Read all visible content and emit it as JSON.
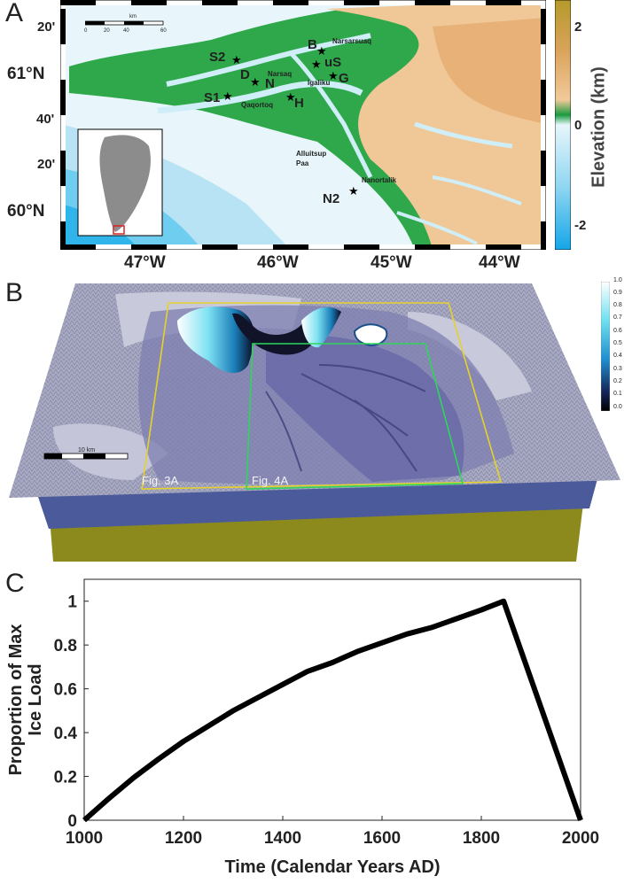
{
  "panel_a": {
    "letter": "A",
    "lat_labels": [
      "20'",
      "61°N",
      "40'",
      "20'",
      "60°N"
    ],
    "lon_labels": [
      "47°W",
      "46°W",
      "45°W",
      "44°W"
    ],
    "scalebar_unit": "km",
    "scalebar_ticks": [
      "0",
      "20",
      "40",
      "60"
    ],
    "sites": [
      {
        "code": "S2"
      },
      {
        "code": "B"
      },
      {
        "code": "uS"
      },
      {
        "code": "D"
      },
      {
        "code": "N"
      },
      {
        "code": "G"
      },
      {
        "code": "S1"
      },
      {
        "code": "H"
      },
      {
        "code": "N2"
      }
    ],
    "places": [
      "Narsarsuaq",
      "Narsaq",
      "Igaliku",
      "Qaqortoq",
      "Alluitsup Paa",
      "Nanortalik"
    ],
    "colorbar": {
      "label": "Elevation (km)",
      "ticks": [
        "2",
        "0",
        "-2"
      ]
    }
  },
  "panel_b": {
    "letter": "B",
    "scalebar_label": "10 km",
    "box_labels": [
      "Fig. 3A",
      "Fig. 4A"
    ],
    "colorbar_ticks": [
      "1.0",
      "0.9",
      "0.8",
      "0.7",
      "0.6",
      "0.5",
      "0.4",
      "0.3",
      "0.2",
      "0.1",
      "0.0"
    ]
  },
  "panel_c": {
    "letter": "C",
    "chart_data": {
      "type": "line",
      "xlabel": "Time (Calendar Years AD)",
      "ylabel": "Proportion of Max Ice Load",
      "xlim": [
        1000,
        2000
      ],
      "ylim": [
        0,
        1.1
      ],
      "xticks": [
        1000,
        1200,
        1400,
        1600,
        1800,
        2000
      ],
      "yticks": [
        0,
        0.2,
        0.4,
        0.6,
        0.8,
        1
      ],
      "series": [
        {
          "x": [
            1000,
            1050,
            1100,
            1150,
            1200,
            1250,
            1300,
            1350,
            1400,
            1450,
            1500,
            1550,
            1600,
            1650,
            1700,
            1750,
            1800,
            1845,
            2000
          ],
          "y": [
            0,
            0.1,
            0.195,
            0.28,
            0.36,
            0.43,
            0.5,
            0.56,
            0.62,
            0.68,
            0.72,
            0.77,
            0.81,
            0.85,
            0.88,
            0.92,
            0.96,
            1.0,
            0
          ]
        }
      ],
      "color": "#000000"
    }
  }
}
